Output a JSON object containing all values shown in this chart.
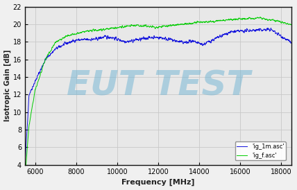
{
  "title": "",
  "xlabel": "Frequency [MHz]",
  "ylabel": "Isotropic Gain [dB]",
  "xlim": [
    5500,
    18500
  ],
  "ylim": [
    4,
    22
  ],
  "xticks": [
    6000,
    8000,
    10000,
    12000,
    14000,
    16000,
    18000
  ],
  "yticks": [
    4,
    6,
    8,
    10,
    12,
    14,
    16,
    18,
    20,
    22
  ],
  "grid_color": "#c8c8c8",
  "plot_bg_color": "#e8e8e8",
  "fig_bg_color": "#f0f0f0",
  "watermark_text": "EUT TEST",
  "watermark_color": "#7ab8d4",
  "watermark_alpha": 0.55,
  "line1_color": "#1010dd",
  "line2_color": "#00cc00",
  "legend1": "'ig_1m.asc'",
  "legend2": "'ig_f.asc'",
  "seed": 42
}
